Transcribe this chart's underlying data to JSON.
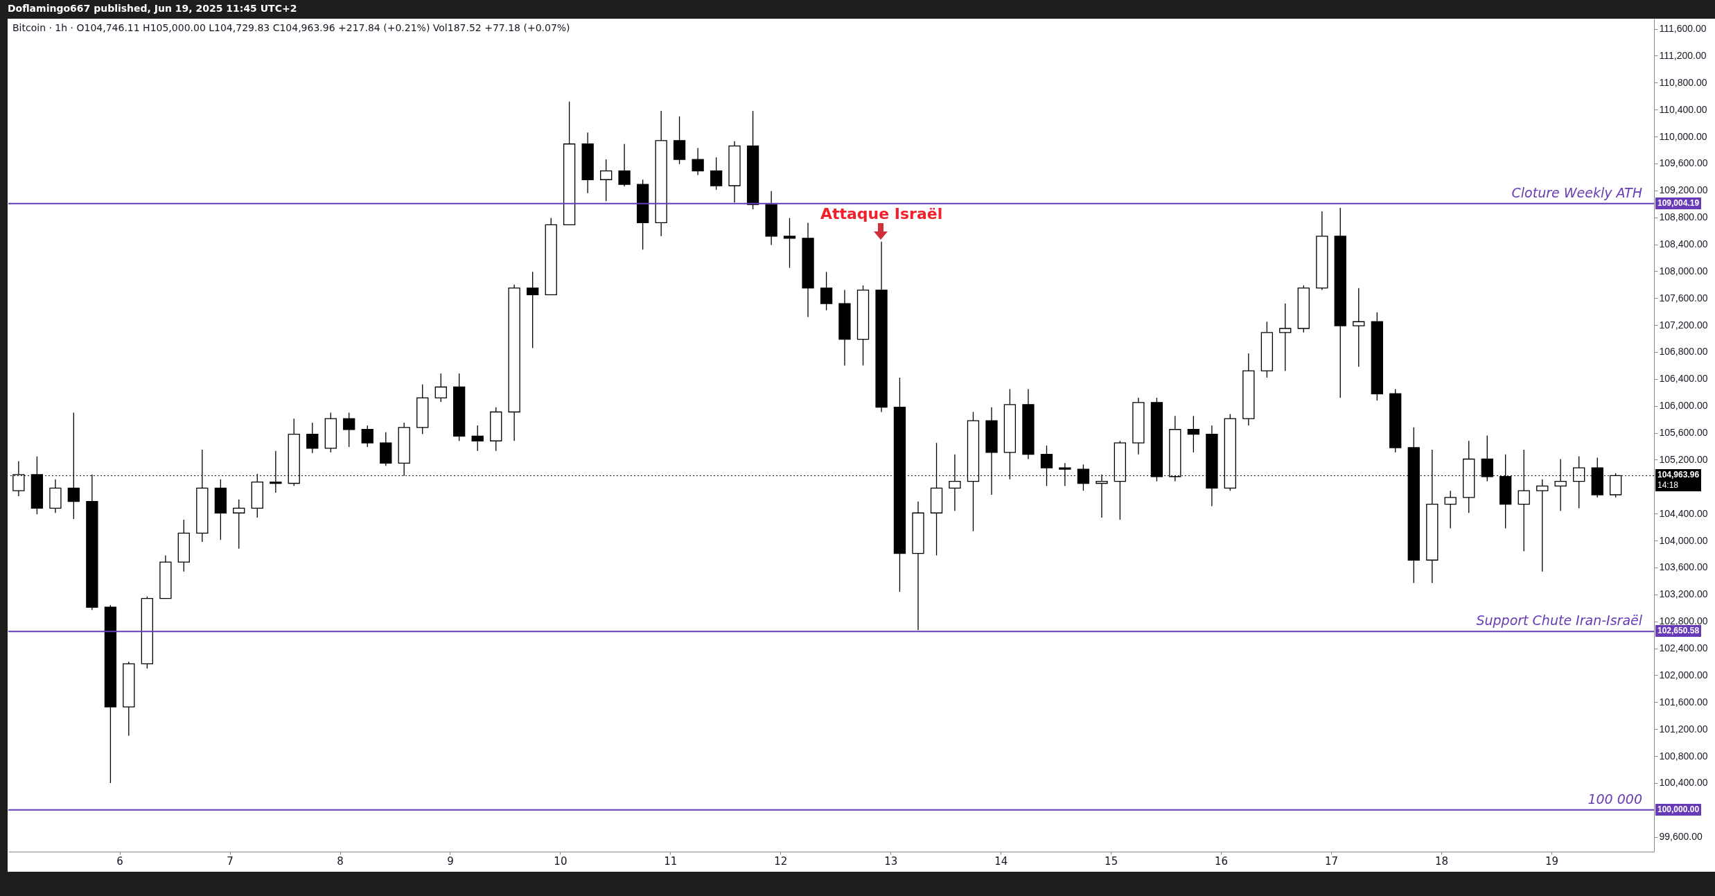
{
  "chart_data": {
    "type": "candlestick",
    "title": "Bitcoin · 1h · O104,746.11  H105,000.00  L104,729.83  C104,963.96  +217.84 (+0.21%)  Vol187.52  +77.18 (+0.07%)",
    "color": "#000000",
    "x": [
      5.083,
      5.25,
      5.417,
      5.583,
      5.75,
      5.917,
      6.083,
      6.25,
      6.417,
      6.583,
      6.75,
      6.917,
      7.083,
      7.25,
      7.417,
      7.583,
      7.75,
      7.917,
      8.083,
      8.25,
      8.417,
      8.583,
      8.75,
      8.917,
      9.083,
      9.25,
      9.417,
      9.583,
      9.75,
      9.917,
      10.083,
      10.25,
      10.417,
      10.583,
      10.75,
      10.917,
      11.083,
      11.25,
      11.417,
      11.583,
      11.75,
      11.917,
      12.083,
      12.25,
      12.417,
      12.583,
      12.75,
      12.917,
      13.083,
      13.25,
      13.417,
      13.583,
      13.75,
      13.917,
      14.083,
      14.25,
      14.417,
      14.583,
      14.75,
      14.917,
      15.083,
      15.25,
      15.417,
      15.583,
      15.75,
      15.917,
      16.083,
      16.25,
      16.417,
      16.583,
      16.75,
      16.917,
      17.083,
      17.25,
      17.417,
      17.583,
      17.75,
      17.917,
      18.083,
      18.25,
      18.417,
      18.583,
      18.75,
      18.917,
      19.083,
      19.25,
      19.417,
      19.583
    ],
    "ohlc": [
      [
        104740,
        105180,
        104660,
        104980
      ],
      [
        104980,
        105250,
        104390,
        104480
      ],
      [
        104480,
        104910,
        104410,
        104780
      ],
      [
        104780,
        105900,
        104320,
        104580
      ],
      [
        104580,
        104980,
        102970,
        103010
      ],
      [
        103010,
        103040,
        100400,
        101530
      ],
      [
        101530,
        102200,
        101100,
        102170
      ],
      [
        102170,
        103170,
        102100,
        103140
      ],
      [
        103140,
        103780,
        103140,
        103680
      ],
      [
        103680,
        104310,
        103540,
        104110
      ],
      [
        104110,
        105350,
        103980,
        104780
      ],
      [
        104780,
        104910,
        104010,
        104410
      ],
      [
        104410,
        104610,
        103880,
        104480
      ],
      [
        104480,
        104990,
        104340,
        104870
      ],
      [
        104870,
        105330,
        104710,
        104850
      ],
      [
        104850,
        105810,
        104810,
        105580
      ],
      [
        105580,
        105750,
        105300,
        105370
      ],
      [
        105370,
        105900,
        105310,
        105810
      ],
      [
        105810,
        105900,
        105390,
        105650
      ],
      [
        105650,
        105710,
        105390,
        105450
      ],
      [
        105450,
        105610,
        105110,
        105150
      ],
      [
        105150,
        105750,
        104960,
        105680
      ],
      [
        105680,
        106320,
        105580,
        106120
      ],
      [
        106120,
        106480,
        106060,
        106280
      ],
      [
        106280,
        106480,
        105480,
        105550
      ],
      [
        105550,
        105710,
        105330,
        105480
      ],
      [
        105480,
        105980,
        105330,
        105910
      ],
      [
        105910,
        107800,
        105480,
        107750
      ],
      [
        107750,
        107990,
        106860,
        107650
      ],
      [
        107650,
        108790,
        107650,
        108690
      ],
      [
        108690,
        110520,
        108690,
        109890
      ],
      [
        109890,
        110060,
        109160,
        109360
      ],
      [
        109360,
        109660,
        109040,
        109490
      ],
      [
        109490,
        109890,
        109260,
        109290
      ],
      [
        109290,
        109360,
        108320,
        108720
      ],
      [
        108720,
        110380,
        108520,
        109940
      ],
      [
        109940,
        110300,
        109590,
        109660
      ],
      [
        109660,
        109830,
        109430,
        109490
      ],
      [
        109490,
        109690,
        109210,
        109270
      ],
      [
        109270,
        109930,
        109020,
        109860
      ],
      [
        109860,
        110380,
        108920,
        108990
      ],
      [
        108990,
        109190,
        108390,
        108520
      ],
      [
        108520,
        108790,
        108050,
        108490
      ],
      [
        108490,
        108720,
        107320,
        107750
      ],
      [
        107750,
        107990,
        107420,
        107520
      ],
      [
        107520,
        107720,
        106600,
        106990
      ],
      [
        106990,
        107790,
        106600,
        107720
      ],
      [
        107720,
        108440,
        105910,
        105980
      ],
      [
        105980,
        106420,
        103240,
        103810
      ],
      [
        103810,
        104580,
        102670,
        104410
      ],
      [
        104410,
        105450,
        103780,
        104780
      ],
      [
        104780,
        105280,
        104440,
        104880
      ],
      [
        104880,
        105910,
        104140,
        105780
      ],
      [
        105780,
        105980,
        104680,
        105310
      ],
      [
        105310,
        106250,
        104910,
        106020
      ],
      [
        106020,
        106250,
        105210,
        105280
      ],
      [
        105280,
        105410,
        104810,
        105080
      ],
      [
        105080,
        105150,
        104810,
        105060
      ],
      [
        105060,
        105130,
        104740,
        104850
      ],
      [
        104850,
        104980,
        104340,
        104880
      ],
      [
        104880,
        105480,
        104310,
        105450
      ],
      [
        105450,
        106120,
        105280,
        106050
      ],
      [
        106050,
        106120,
        104880,
        104950
      ],
      [
        104950,
        105850,
        104880,
        105650
      ],
      [
        105650,
        105850,
        105310,
        105580
      ],
      [
        105580,
        105710,
        104510,
        104780
      ],
      [
        104780,
        105880,
        104740,
        105810
      ],
      [
        105810,
        106780,
        105710,
        106520
      ],
      [
        106520,
        107250,
        106420,
        107090
      ],
      [
        107090,
        107520,
        106520,
        107150
      ],
      [
        107150,
        107790,
        107090,
        107750
      ],
      [
        107750,
        108890,
        107720,
        108520
      ],
      [
        108520,
        108940,
        106120,
        107190
      ],
      [
        107190,
        107750,
        106580,
        107250
      ],
      [
        107250,
        107390,
        106080,
        106180
      ],
      [
        106180,
        106250,
        105310,
        105380
      ],
      [
        105380,
        105680,
        103370,
        103710
      ],
      [
        103710,
        105350,
        103370,
        104540
      ],
      [
        104540,
        104740,
        104180,
        104640
      ],
      [
        104640,
        105480,
        104410,
        105210
      ],
      [
        105210,
        105560,
        104880,
        104950
      ],
      [
        104950,
        105280,
        104180,
        104540
      ],
      [
        104540,
        105350,
        103840,
        104740
      ],
      [
        104740,
        104910,
        103540,
        104810
      ],
      [
        104810,
        105210,
        104440,
        104880
      ],
      [
        104880,
        105250,
        104480,
        105080
      ],
      [
        105080,
        105230,
        104640,
        104680
      ],
      [
        104680,
        105000,
        104640,
        104963.96
      ]
    ],
    "xlim": [
      5.021,
      19.9
    ],
    "xticks": [
      6,
      7,
      8,
      9,
      10,
      11,
      12,
      13,
      14,
      15,
      16,
      17,
      18,
      19
    ],
    "ylim": [
      99380,
      111750
    ],
    "yticks": [
      {
        "value": 99600,
        "label": "99,600.00"
      },
      {
        "value": 100000,
        "label": "100,000.00"
      },
      {
        "value": 100400,
        "label": "100,400.00"
      },
      {
        "value": 100800,
        "label": "100,800.00"
      },
      {
        "value": 101200,
        "label": "101,200.00"
      },
      {
        "value": 101600,
        "label": "101,600.00"
      },
      {
        "value": 102000,
        "label": "102,000.00"
      },
      {
        "value": 102400,
        "label": "102,400.00"
      },
      {
        "value": 102800,
        "label": "102,800.00"
      },
      {
        "value": 103200,
        "label": "103,200.00"
      },
      {
        "value": 103600,
        "label": "103,600.00"
      },
      {
        "value": 104000,
        "label": "104,000.00"
      },
      {
        "value": 104400,
        "label": "104,400.00"
      },
      {
        "value": 105200,
        "label": "105,200.00"
      },
      {
        "value": 105600,
        "label": "105,600.00"
      },
      {
        "value": 106000,
        "label": "106,000.00"
      },
      {
        "value": 106400,
        "label": "106,400.00"
      },
      {
        "value": 106800,
        "label": "106,800.00"
      },
      {
        "value": 107200,
        "label": "107,200.00"
      },
      {
        "value": 107600,
        "label": "107,600.00"
      },
      {
        "value": 108000,
        "label": "108,000.00"
      },
      {
        "value": 108400,
        "label": "108,400.00"
      },
      {
        "value": 108800,
        "label": "108,800.00"
      },
      {
        "value": 109004.19,
        "label": "109,004.19"
      },
      {
        "value": 102650.58,
        "label": "102,650.58"
      },
      {
        "value": 104963.96,
        "label": "104,963.96"
      },
      {
        "value": 109200,
        "label": "109,200.00"
      },
      {
        "value": 109600,
        "label": "109,600.00"
      },
      {
        "value": 110000,
        "label": "110,000.00"
      },
      {
        "value": 110400,
        "label": "110,400.00"
      },
      {
        "value": 110800,
        "label": "110,800.00"
      },
      {
        "value": 111200,
        "label": "111,200.00"
      },
      {
        "value": 111600,
        "label": "111,600.00"
      }
    ],
    "ref_lines": [
      {
        "axis": "y",
        "value": 109004.19,
        "label": "Cloture Weekly ATH",
        "color": "#673ab7"
      },
      {
        "axis": "y",
        "value": 102650.58,
        "label": "Support Chute Iran-Israël",
        "color": "#673ab7"
      },
      {
        "axis": "y",
        "value": 100000,
        "label": "100 000",
        "color": "#673ab7"
      },
      {
        "axis": "y",
        "value": 104963.96,
        "color": "#000000",
        "line_style": "dotted"
      }
    ],
    "annotations": [
      "Doflamingo667 published, Jun 19, 2025 11:45 UTC+2",
      "14:18",
      {
        "text": "Attaque Israël",
        "x": 12.917,
        "y": 108440
      }
    ]
  }
}
